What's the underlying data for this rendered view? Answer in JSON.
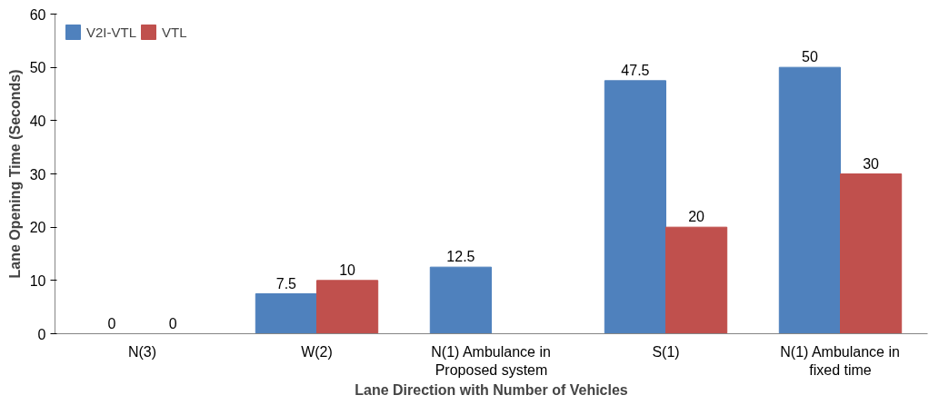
{
  "chart_data": {
    "type": "bar",
    "xlabel": "Lane Direction with Number of Vehicles",
    "ylabel": "Lane Opening Time (Seconds)",
    "categories": [
      "N(3)",
      "W(2)",
      "N(1) Ambulance in Proposed system",
      "S(1)",
      "N(1) Ambulance in fixed time"
    ],
    "series": [
      {
        "name": "V2I-VTL",
        "color": "#4f81bd",
        "values": [
          0,
          7.5,
          12.5,
          47.5,
          50
        ]
      },
      {
        "name": "VTL",
        "color": "#c0504d",
        "values": [
          0,
          10,
          null,
          20,
          30
        ]
      }
    ],
    "ylim": [
      0,
      60
    ],
    "yticks": [
      0,
      10,
      20,
      30,
      40,
      50,
      60
    ],
    "grid": false,
    "legend": "top left",
    "data_labels": true
  }
}
